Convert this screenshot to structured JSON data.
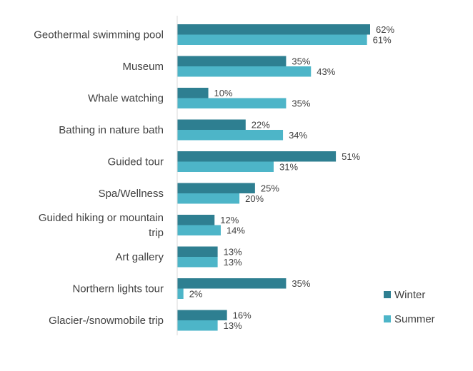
{
  "chart_data": {
    "type": "bar",
    "orientation": "horizontal",
    "title": "",
    "xlabel": "",
    "ylabel": "",
    "xlim": [
      0,
      65
    ],
    "grid": false,
    "legend_position": "bottom-right",
    "value_suffix": "%",
    "categories": [
      [
        "Geothermal swimming pool"
      ],
      [
        "Museum"
      ],
      [
        "Whale watching"
      ],
      [
        "Bathing in nature bath"
      ],
      [
        "Guided tour"
      ],
      [
        "Spa/Wellness"
      ],
      [
        "Guided hiking or mountain",
        "trip"
      ],
      [
        "Art gallery"
      ],
      [
        "Northern lights tour"
      ],
      [
        "Glacier-/snowmobile trip"
      ]
    ],
    "series": [
      {
        "name": "Winter",
        "color": "#2e7f91",
        "values": [
          62,
          35,
          10,
          22,
          51,
          25,
          12,
          13,
          35,
          16
        ]
      },
      {
        "name": "Summer",
        "color": "#4db5c8",
        "values": [
          61,
          43,
          35,
          34,
          31,
          20,
          14,
          13,
          2,
          13
        ]
      }
    ]
  }
}
